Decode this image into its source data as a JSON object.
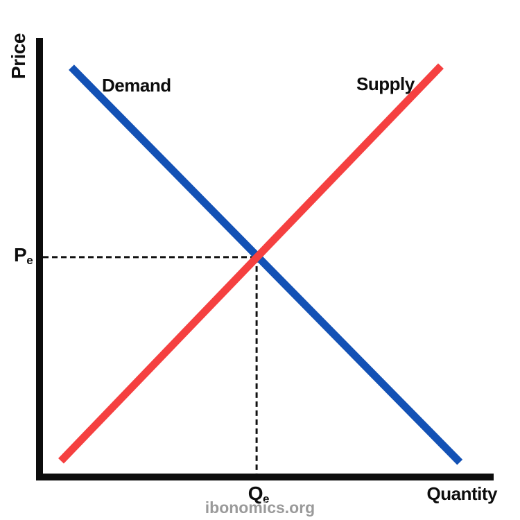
{
  "chart_data": {
    "type": "line",
    "title": "",
    "xlabel": "Quantity",
    "ylabel": "Price",
    "x_range": [
      0,
      100
    ],
    "y_range": [
      0,
      100
    ],
    "grid": false,
    "background": "#ffffff",
    "axis_color": "#0d0d0d",
    "text_color": "#0d0d0d",
    "series": [
      {
        "name": "Demand",
        "color": "#1351b5",
        "points": [
          [
            6.3,
            93.3
          ],
          [
            92.5,
            2.6
          ]
        ]
      },
      {
        "name": "Supply",
        "color": "#f54040",
        "points": [
          [
            4.0,
            2.9
          ],
          [
            88.3,
            93.6
          ]
        ]
      }
    ],
    "equilibrium": {
      "x": 47.4,
      "y": 49.7,
      "guide_style": "dashed",
      "guide_color": "#111111",
      "price_label": {
        "main": "P",
        "sub": "e"
      },
      "quantity_label": {
        "main": "Q",
        "sub": "e"
      }
    },
    "legend": "inline-curve-labels",
    "watermark": "ibonomics.org"
  }
}
